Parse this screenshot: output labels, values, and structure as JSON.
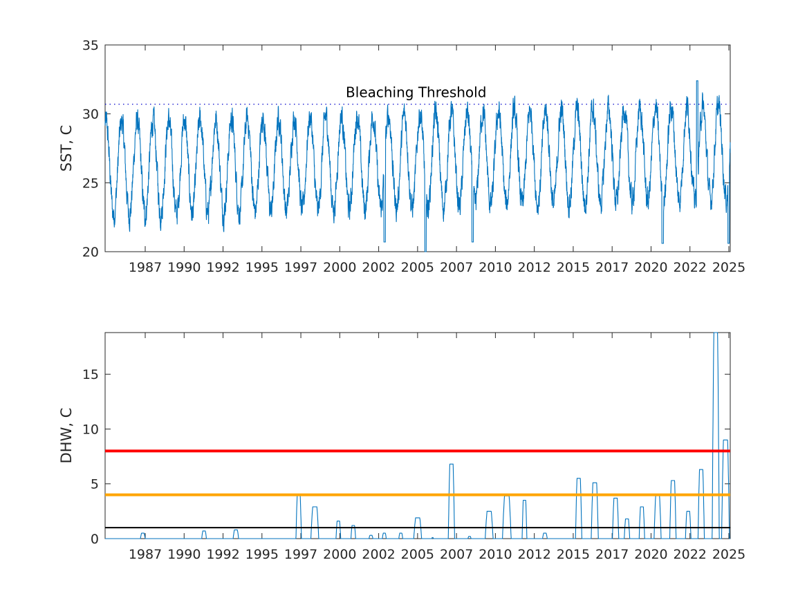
{
  "colors": {
    "series": "#0072BD",
    "threshold_line": "#0000CC",
    "red": "#FF0000",
    "orange": "#FFA500",
    "black": "#000000",
    "axes": "#262626"
  },
  "chart_data": [
    {
      "type": "line",
      "title": "",
      "xlabel": "",
      "ylabel": "SST, C",
      "xlim": [
        1985.2,
        2025.0
      ],
      "ylim": [
        20,
        35
      ],
      "yticks": [
        20,
        25,
        30,
        35
      ],
      "xtick_labels": [
        "1987",
        "1990",
        "1992",
        "1995",
        "1997",
        "2000",
        "2002",
        "2005",
        "2007",
        "2010",
        "2012",
        "2015",
        "2017",
        "2020",
        "2022",
        "2025"
      ],
      "grid": false,
      "annotations": [
        {
          "text": "Bleaching Threshold",
          "x": 2005.0,
          "y": 31.2
        }
      ],
      "hlines": [
        {
          "y": 30.7,
          "style": "dotted",
          "color": "#0000CC"
        }
      ],
      "seasonal_model": {
        "mean": 26.0,
        "amplitude": 3.4,
        "peak_phase_year_fraction": 0.25,
        "noise": 0.9
      },
      "anomalies": [
        {
          "x": 2005.6,
          "y": 20.0
        },
        {
          "x": 2022.9,
          "y": 32.4
        },
        {
          "x": 2020.7,
          "y": 20.6
        },
        {
          "x": 2003.0,
          "y": 20.7
        },
        {
          "x": 2008.6,
          "y": 20.7
        },
        {
          "x": 2024.9,
          "y": 20.6
        }
      ],
      "x_start": 1985.2,
      "x_end": 2025.0
    },
    {
      "type": "line",
      "title": "",
      "xlabel": "",
      "ylabel": "DHW, C",
      "xlim": [
        1985.2,
        2025.0
      ],
      "ylim": [
        0,
        18.8
      ],
      "yticks": [
        0,
        5,
        10,
        15
      ],
      "xtick_labels": [
        "1987",
        "1990",
        "1992",
        "1995",
        "1997",
        "2000",
        "2002",
        "2005",
        "2007",
        "2010",
        "2012",
        "2015",
        "2017",
        "2020",
        "2022",
        "2025"
      ],
      "grid": false,
      "hlines": [
        {
          "y": 8,
          "color": "#FF0000"
        },
        {
          "y": 4,
          "color": "#FFA500"
        },
        {
          "y": 1,
          "color": "#000000"
        }
      ],
      "events": [
        {
          "start": 1987.45,
          "end": 1987.75,
          "peak": 0.5
        },
        {
          "start": 1991.35,
          "end": 1991.65,
          "peak": 0.7
        },
        {
          "start": 1993.35,
          "end": 1993.7,
          "peak": 0.8
        },
        {
          "start": 1997.35,
          "end": 1997.7,
          "peak": 4.0
        },
        {
          "start": 1998.3,
          "end": 1998.8,
          "peak": 2.9
        },
        {
          "start": 1999.9,
          "end": 2000.2,
          "peak": 1.6
        },
        {
          "start": 2000.85,
          "end": 2001.15,
          "peak": 1.2
        },
        {
          "start": 2002.0,
          "end": 2002.25,
          "peak": 0.3
        },
        {
          "start": 2002.85,
          "end": 2003.1,
          "peak": 0.5
        },
        {
          "start": 2003.9,
          "end": 2004.15,
          "peak": 0.5
        },
        {
          "start": 2004.85,
          "end": 2005.35,
          "peak": 1.9
        },
        {
          "start": 2006.0,
          "end": 2006.1,
          "peak": 0.1
        },
        {
          "start": 2007.05,
          "end": 2007.45,
          "peak": 6.8
        },
        {
          "start": 2008.3,
          "end": 2008.5,
          "peak": 0.2
        },
        {
          "start": 2009.4,
          "end": 2009.9,
          "peak": 2.5
        },
        {
          "start": 2010.5,
          "end": 2011.05,
          "peak": 3.9
        },
        {
          "start": 2011.75,
          "end": 2012.05,
          "peak": 3.5
        },
        {
          "start": 2013.05,
          "end": 2013.35,
          "peak": 0.5
        },
        {
          "start": 2015.15,
          "end": 2015.55,
          "peak": 5.5
        },
        {
          "start": 2016.15,
          "end": 2016.6,
          "peak": 5.1
        },
        {
          "start": 2017.5,
          "end": 2017.9,
          "peak": 3.7
        },
        {
          "start": 2018.25,
          "end": 2018.6,
          "peak": 1.8
        },
        {
          "start": 2019.2,
          "end": 2019.55,
          "peak": 2.9
        },
        {
          "start": 2020.15,
          "end": 2020.6,
          "peak": 4.0
        },
        {
          "start": 2021.15,
          "end": 2021.55,
          "peak": 5.3
        },
        {
          "start": 2022.15,
          "end": 2022.5,
          "peak": 2.5
        },
        {
          "start": 2022.95,
          "end": 2023.35,
          "peak": 6.3
        },
        {
          "start": 2023.85,
          "end": 2024.3,
          "peak": 18.8
        },
        {
          "start": 2024.45,
          "end": 2024.95,
          "peak": 9.0
        }
      ]
    }
  ]
}
